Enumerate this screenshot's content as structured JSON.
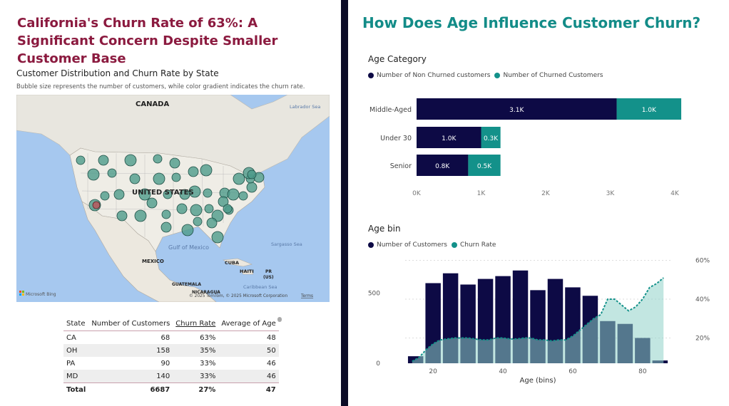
{
  "left": {
    "title": "California's Churn Rate of 63%: A Significant Concern Despite Smaller Customer Base",
    "map_title": "Customer Distribution and Churn Rate by State",
    "map_subtitle": "Bubble size represents the number of customers, while color gradient indicates the churn rate.",
    "map_labels": {
      "canada": "CANADA",
      "united_states": "UNITED STATES",
      "labrador_sea": "Labrador Sea",
      "gulf_of_mexico": "Gulf of Mexico",
      "sargasso_sea": "Sargasso Sea",
      "mexico": "MEXICO",
      "cuba": "CUBA",
      "haiti": "HAITI",
      "pr": "PR",
      "us": "(US)",
      "caribbean_sea": "Caribbean Sea",
      "guatemala": "GUATEMALA",
      "nicaragua": "NICARAGUA",
      "bing": "Microsoft Bing",
      "copyright": "© 2025 TomTom, © 2025 Microsoft Corporation",
      "terms": "Terms"
    },
    "table": {
      "headers": [
        "State",
        "Number of Customers",
        "Churn Rate",
        "Average of Age"
      ],
      "rows": [
        [
          "CA",
          "68",
          "63%",
          "48"
        ],
        [
          "OH",
          "158",
          "35%",
          "50"
        ],
        [
          "PA",
          "90",
          "33%",
          "46"
        ],
        [
          "MD",
          "140",
          "33%",
          "46"
        ]
      ],
      "total": [
        "Total",
        "6687",
        "27%",
        "47"
      ]
    }
  },
  "right": {
    "title": "How Does Age Influence Customer Churn?"
  },
  "colors": {
    "navy": "#0d0a45",
    "teal": "#13918a",
    "teal_light": "#8fd1c8",
    "crimson": "#8b1a3f"
  },
  "chart_data": [
    {
      "type": "bar",
      "orientation": "horizontal",
      "stacked": true,
      "title": "Age Category",
      "categories": [
        "Middle-Aged",
        "Under 30",
        "Senior"
      ],
      "series": [
        {
          "name": "Number of Non Churned customers",
          "values": [
            3100,
            1000,
            800
          ],
          "labels": [
            "3.1K",
            "1.0K",
            "0.8K"
          ]
        },
        {
          "name": "Number of Churned Customers",
          "values": [
            1000,
            300,
            500
          ],
          "labels": [
            "1.0K",
            "0.3K",
            "0.5K"
          ]
        }
      ],
      "xticks": [
        "0K",
        "1K",
        "2K",
        "3K",
        "4K"
      ],
      "xlim": [
        0,
        4000
      ]
    },
    {
      "type": "bar",
      "title": "Age bin",
      "xlabel": "Age (bins)",
      "series_names": [
        "Number of Customers",
        "Churn Rate"
      ],
      "x": [
        15,
        20,
        25,
        30,
        35,
        40,
        45,
        50,
        55,
        60,
        65,
        70,
        75,
        80,
        85
      ],
      "customers": [
        50,
        570,
        640,
        560,
        600,
        620,
        660,
        520,
        600,
        540,
        480,
        300,
        280,
        180,
        20
      ],
      "churn_x": [
        14,
        16,
        18,
        20,
        22,
        24,
        26,
        28,
        30,
        32,
        34,
        36,
        38,
        40,
        42,
        44,
        46,
        48,
        50,
        52,
        54,
        56,
        58,
        60,
        62,
        64,
        66,
        68,
        70,
        72,
        74,
        76,
        78,
        80,
        82,
        84,
        86
      ],
      "churn_rate": [
        8,
        10,
        14,
        17,
        19,
        19.5,
        20,
        20,
        20,
        19.5,
        19,
        19,
        20,
        20,
        19.5,
        19.5,
        20,
        20,
        19,
        19,
        18.5,
        19,
        19,
        21,
        24,
        27,
        30,
        32,
        40,
        40,
        37,
        34,
        36,
        40,
        46,
        48,
        51
      ],
      "y_left_ticks": [
        0,
        500
      ],
      "y_left_lim": [
        0,
        760
      ],
      "y_right_ticks": [
        "20%",
        "40%",
        "60%"
      ],
      "y_right_lim": [
        7,
        62
      ],
      "xticks": [
        20,
        40,
        60,
        80
      ],
      "xlim": [
        12,
        88
      ]
    }
  ]
}
